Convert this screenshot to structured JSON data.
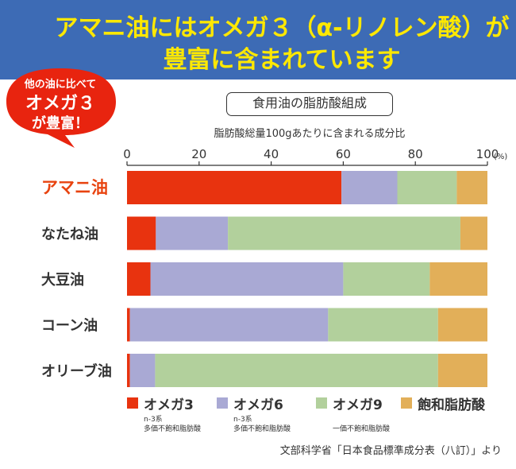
{
  "banner": {
    "line1": "アマニ油にはオメガ３（α-リノレン酸）が",
    "line2": "豊富に含まれています",
    "background": "#3d6bb5",
    "text_color": "#ffe800"
  },
  "badge": {
    "line1": "他の油に比べて",
    "line2": "オメガ３",
    "line3": "が豊富！",
    "color": "#e8240f"
  },
  "source": "文部科学省「日本食品標準成分表（八訂）」より",
  "chart_data": {
    "type": "bar",
    "orientation": "horizontal",
    "stacked": true,
    "title": "食用油の脂肪酸組成",
    "subtitle": "脂肪酸総量100gあたりに含まれる成分比",
    "xlim": [
      0,
      100
    ],
    "x_ticks": [
      "0",
      "20",
      "40",
      "60",
      "80",
      "100"
    ],
    "unit": "(%)",
    "grid": false,
    "legend_position": "bottom",
    "categories": [
      "アマニ油",
      "なたね油",
      "大豆油",
      "コーン油",
      "オリーブ油"
    ],
    "highlight_color": "#e8430f",
    "series": [
      {
        "name": "オメガ3",
        "color": "#e8330f",
        "values": [
          59.5,
          8,
          6.5,
          0.8,
          0.8
        ],
        "notes": [
          "n-3系",
          "多価不飽和脂肪酸"
        ]
      },
      {
        "name": "オメガ6",
        "color": "#a9a9d4",
        "values": [
          15.5,
          20,
          53.5,
          55,
          7
        ],
        "notes": [
          "n-3系",
          "多価不飽和脂肪酸"
        ]
      },
      {
        "name": "オメガ9",
        "color": "#b2d09c",
        "values": [
          16.5,
          64.5,
          24,
          30.5,
          78.5
        ],
        "notes": [
          "一価不飽和脂肪酸"
        ]
      },
      {
        "name": "飽和脂肪酸",
        "color": "#e2af59",
        "values": [
          8.5,
          7.5,
          16,
          13.7,
          13.7
        ],
        "notes": []
      }
    ]
  }
}
